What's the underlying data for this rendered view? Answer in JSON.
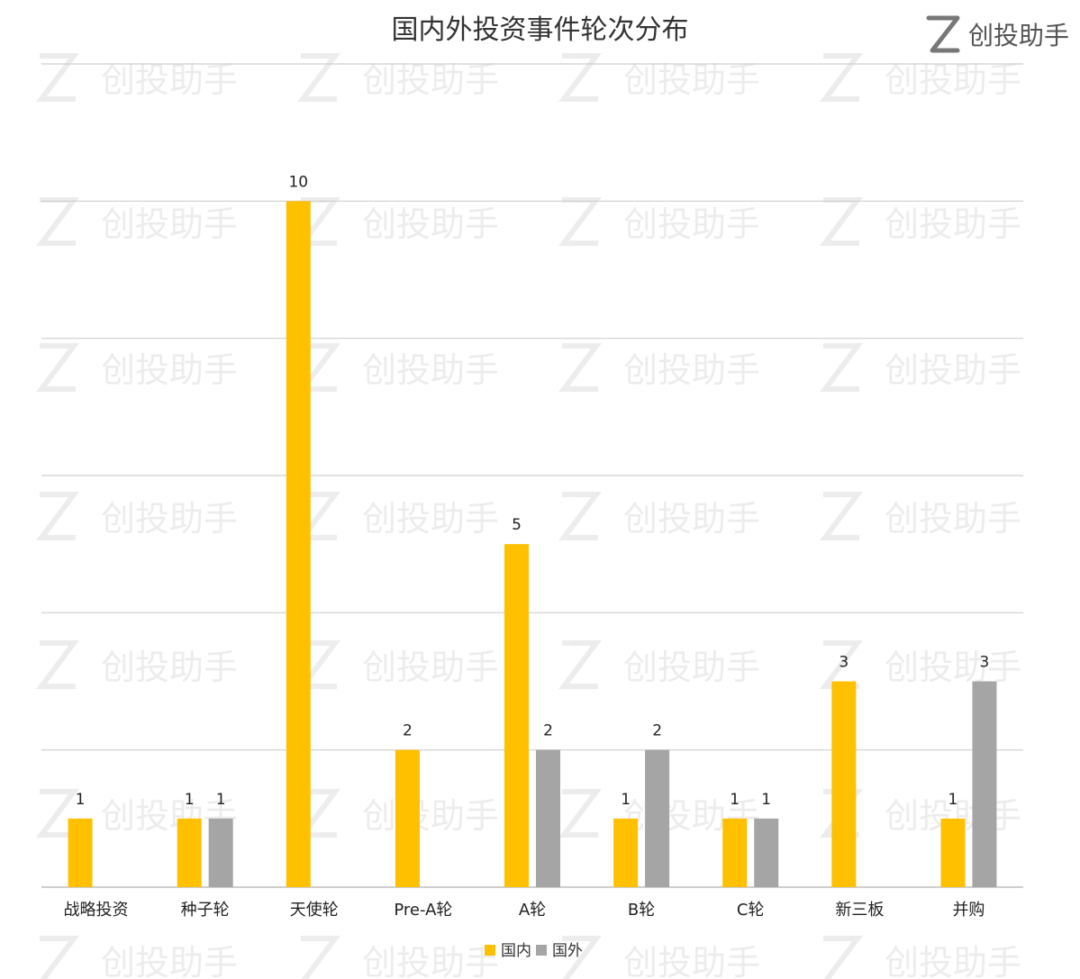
{
  "brand": {
    "name": "创投助手",
    "icon": "z-logo-icon"
  },
  "watermark": {
    "text": "创投助手"
  },
  "chart_data": {
    "type": "bar",
    "title": "国内外投资事件轮次分布",
    "categories": [
      "战略投资",
      "种子轮",
      "天使轮",
      "Pre-A轮",
      "A轮",
      "B轮",
      "C轮",
      "新三板",
      "并购"
    ],
    "series": [
      {
        "name": "国内",
        "color": "#FFC000",
        "values": [
          1,
          1,
          10,
          2,
          5,
          1,
          1,
          3,
          1
        ]
      },
      {
        "name": "国外",
        "color": "#A5A5A5",
        "values": [
          null,
          1,
          null,
          null,
          2,
          2,
          1,
          null,
          3
        ]
      }
    ],
    "ylim": [
      0,
      12
    ],
    "grid": true,
    "legend": "bottom-center",
    "xlabel": "",
    "ylabel": ""
  }
}
